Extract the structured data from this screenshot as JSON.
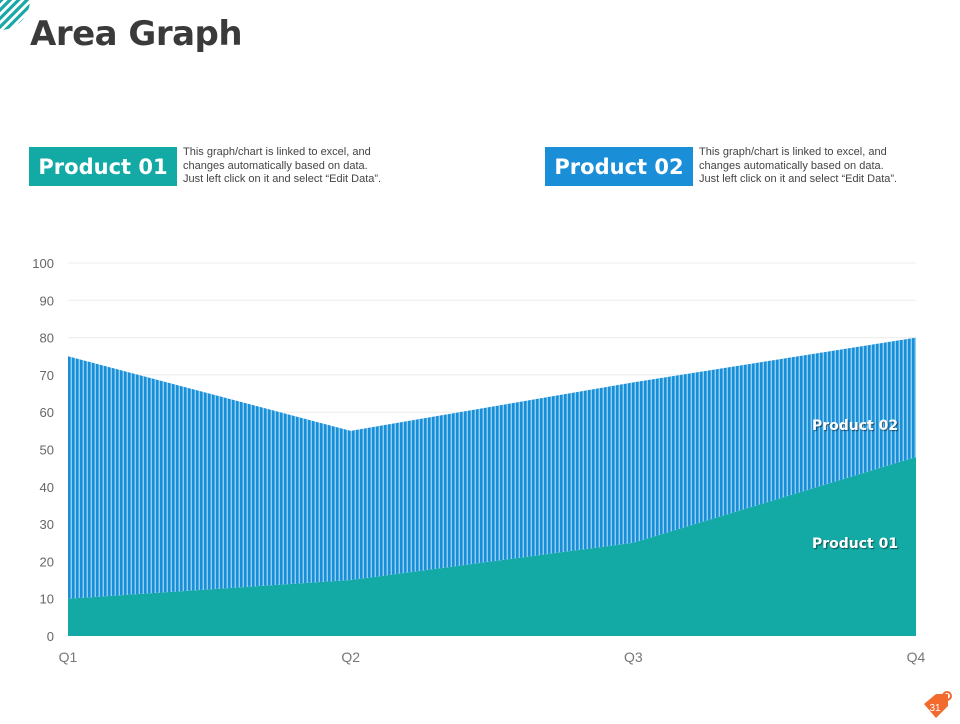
{
  "title": "Area Graph",
  "products": [
    {
      "label": "Product 01",
      "color": "#13aaa5",
      "desc": [
        "This graph/chart is linked to excel, and",
        "changes automatically based on data.",
        "Just left click on it and select “Edit Data”."
      ]
    },
    {
      "label": "Product 02",
      "color": "#1a8fd8",
      "desc": [
        "This graph/chart is linked to excel, and",
        "changes automatically based on data.",
        "Just left click on it and select “Edit Data”."
      ]
    }
  ],
  "page_number": "31",
  "chart_data": {
    "type": "area",
    "stacked": true,
    "categories": [
      "Q1",
      "Q2",
      "Q3",
      "Q4"
    ],
    "series": [
      {
        "name": "Product 01",
        "values": [
          10,
          15,
          25,
          48
        ],
        "color": "#13aaa5"
      },
      {
        "name": "Product 02",
        "values": [
          65,
          40,
          43,
          32
        ],
        "color": "#1a8fd8"
      }
    ],
    "yticks": [
      0,
      10,
      20,
      30,
      40,
      50,
      60,
      70,
      80,
      90,
      100
    ],
    "ylim": [
      0,
      100
    ],
    "grid": true,
    "labels": [
      "Product 02",
      "Product 01"
    ]
  }
}
